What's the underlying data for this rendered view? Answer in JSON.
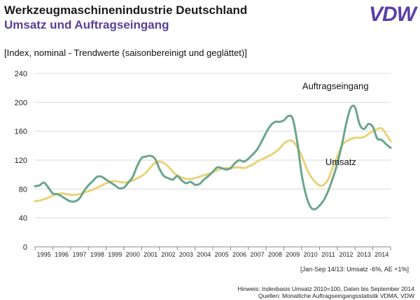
{
  "header": {
    "title": "Werkzeugmaschinenindustrie Deutschland",
    "subtitle": "Umsatz und Auftragseingang",
    "logo": "VDW"
  },
  "note": "[Jan-Sep 14/13: Umsatz -6%, AE +1%]",
  "footer": {
    "line1": "Hinweis: Indexbasis Umsatz 2010=100, Daten bis September 2014",
    "line2": "Quellen: Monatliche Auftragseingangsstatistik VDMA, VDW"
  },
  "chart_data": {
    "type": "line",
    "ylabel": "[Index, nominal - Trendwerte (saisonbereinigt und geglättet)]",
    "ylim": [
      0,
      240
    ],
    "yticks": [
      0,
      40,
      80,
      120,
      160,
      200,
      240
    ],
    "xlim": [
      1994.5,
      2014.5
    ],
    "categories": [
      "1995",
      "1996",
      "1997",
      "1998",
      "1999",
      "2000",
      "2001",
      "2002",
      "2003",
      "2004",
      "2005",
      "2006",
      "2007",
      "2008",
      "2009",
      "2010",
      "2011",
      "2012",
      "2013",
      "2014"
    ],
    "grid": true,
    "colors": {
      "auftrag": "#6aa58a",
      "umsatz": "#ead27a"
    },
    "series": [
      {
        "name": "Auftragseingang",
        "x": [
          1994.5,
          1994.75,
          1995.0,
          1995.25,
          1995.5,
          1995.75,
          1996.0,
          1996.25,
          1996.5,
          1996.75,
          1997.0,
          1997.25,
          1997.5,
          1997.75,
          1998.0,
          1998.25,
          1998.5,
          1998.75,
          1999.0,
          1999.25,
          1999.5,
          1999.75,
          2000.0,
          2000.25,
          2000.5,
          2000.75,
          2001.0,
          2001.25,
          2001.5,
          2001.75,
          2002.0,
          2002.25,
          2002.5,
          2002.75,
          2003.0,
          2003.25,
          2003.5,
          2003.75,
          2004.0,
          2004.25,
          2004.5,
          2004.75,
          2005.0,
          2005.25,
          2005.5,
          2005.75,
          2006.0,
          2006.25,
          2006.5,
          2006.75,
          2007.0,
          2007.25,
          2007.5,
          2007.75,
          2008.0,
          2008.25,
          2008.5,
          2008.75,
          2009.0,
          2009.25,
          2009.5,
          2009.75,
          2010.0,
          2010.25,
          2010.5,
          2010.75,
          2011.0,
          2011.25,
          2011.5,
          2011.75,
          2012.0,
          2012.25,
          2012.5,
          2012.75,
          2013.0,
          2013.25,
          2013.5,
          2013.75,
          2014.0,
          2014.25,
          2014.5
        ],
        "values": [
          84,
          85,
          89,
          82,
          74,
          73,
          70,
          66,
          63,
          63,
          67,
          77,
          85,
          91,
          97,
          97,
          93,
          89,
          85,
          81,
          82,
          89,
          97,
          112,
          123,
          125,
          126,
          122,
          108,
          98,
          95,
          93,
          98,
          92,
          88,
          90,
          86,
          87,
          93,
          98,
          104,
          110,
          109,
          107,
          109,
          116,
          120,
          118,
          122,
          128,
          135,
          146,
          158,
          168,
          173,
          173,
          175,
          181,
          177,
          145,
          100,
          71,
          55,
          52,
          57,
          65,
          78,
          95,
          115,
          140,
          170,
          192,
          193,
          170,
          163,
          170,
          166,
          150,
          148,
          142,
          137
        ]
      },
      {
        "name": "Umsatz",
        "x": [
          1994.5,
          1994.75,
          1995.0,
          1995.25,
          1995.5,
          1995.75,
          1996.0,
          1996.25,
          1996.5,
          1996.75,
          1997.0,
          1997.25,
          1997.5,
          1997.75,
          1998.0,
          1998.25,
          1998.5,
          1998.75,
          1999.0,
          1999.25,
          1999.5,
          1999.75,
          2000.0,
          2000.25,
          2000.5,
          2000.75,
          2001.0,
          2001.25,
          2001.5,
          2001.75,
          2002.0,
          2002.25,
          2002.5,
          2002.75,
          2003.0,
          2003.25,
          2003.5,
          2003.75,
          2004.0,
          2004.25,
          2004.5,
          2004.75,
          2005.0,
          2005.25,
          2005.5,
          2005.75,
          2006.0,
          2006.25,
          2006.5,
          2006.75,
          2007.0,
          2007.25,
          2007.5,
          2007.75,
          2008.0,
          2008.25,
          2008.5,
          2008.75,
          2009.0,
          2009.25,
          2009.5,
          2009.75,
          2010.0,
          2010.25,
          2010.5,
          2010.75,
          2011.0,
          2011.25,
          2011.5,
          2011.75,
          2012.0,
          2012.25,
          2012.5,
          2012.75,
          2013.0,
          2013.25,
          2013.5,
          2013.75,
          2014.0,
          2014.25,
          2014.5
        ],
        "values": [
          63,
          64,
          66,
          68,
          71,
          73,
          74,
          73,
          72,
          72,
          73,
          75,
          77,
          79,
          82,
          85,
          88,
          90,
          91,
          90,
          89,
          90,
          92,
          95,
          98,
          103,
          110,
          116,
          118,
          116,
          111,
          104,
          99,
          96,
          94,
          94,
          95,
          97,
          99,
          101,
          103,
          106,
          108,
          109,
          109,
          110,
          110,
          109,
          111,
          114,
          118,
          121,
          124,
          127,
          131,
          136,
          143,
          147,
          146,
          138,
          126,
          110,
          98,
          90,
          85,
          86,
          94,
          110,
          125,
          140,
          146,
          149,
          151,
          151,
          152,
          156,
          160,
          163,
          164,
          156,
          146
        ]
      }
    ],
    "annotations": [
      {
        "text": "Auftragseingang",
        "series": "Auftragseingang"
      },
      {
        "text": "Umsatz",
        "series": "Umsatz"
      }
    ]
  }
}
